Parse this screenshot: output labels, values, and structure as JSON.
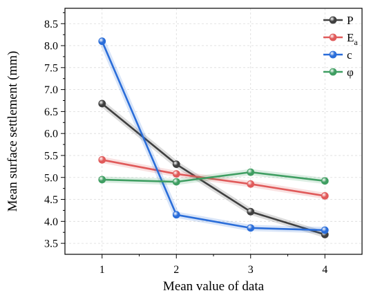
{
  "chart_data": {
    "type": "line",
    "title": "",
    "xlabel": "Mean value of data",
    "ylabel": "Mean surface settlement (mm)",
    "x": [
      1,
      2,
      3,
      4
    ],
    "xlim": [
      0.5,
      4.5
    ],
    "ylim": [
      3.25,
      8.85
    ],
    "xticks": [
      "1",
      "2",
      "3",
      "4"
    ],
    "yticks": [
      "3.5",
      "4.0",
      "4.5",
      "5.0",
      "5.5",
      "6.0",
      "6.5",
      "7.0",
      "7.5",
      "8.0",
      "8.5"
    ],
    "grid": true,
    "legend_position": "top-right",
    "series": [
      {
        "name": "P",
        "name_sub": "",
        "color": "#3f3f3f",
        "values": [
          6.68,
          5.3,
          4.22,
          3.7
        ]
      },
      {
        "name": "E",
        "name_sub": "a",
        "color": "#e05a5a",
        "values": [
          5.4,
          5.08,
          4.85,
          4.58
        ]
      },
      {
        "name": "c",
        "name_sub": "",
        "color": "#2a6dd9",
        "values": [
          8.1,
          4.15,
          3.85,
          3.8
        ]
      },
      {
        "name": "φ",
        "name_sub": "",
        "color": "#3f9e62",
        "values": [
          4.95,
          4.9,
          5.12,
          4.92
        ]
      }
    ]
  }
}
